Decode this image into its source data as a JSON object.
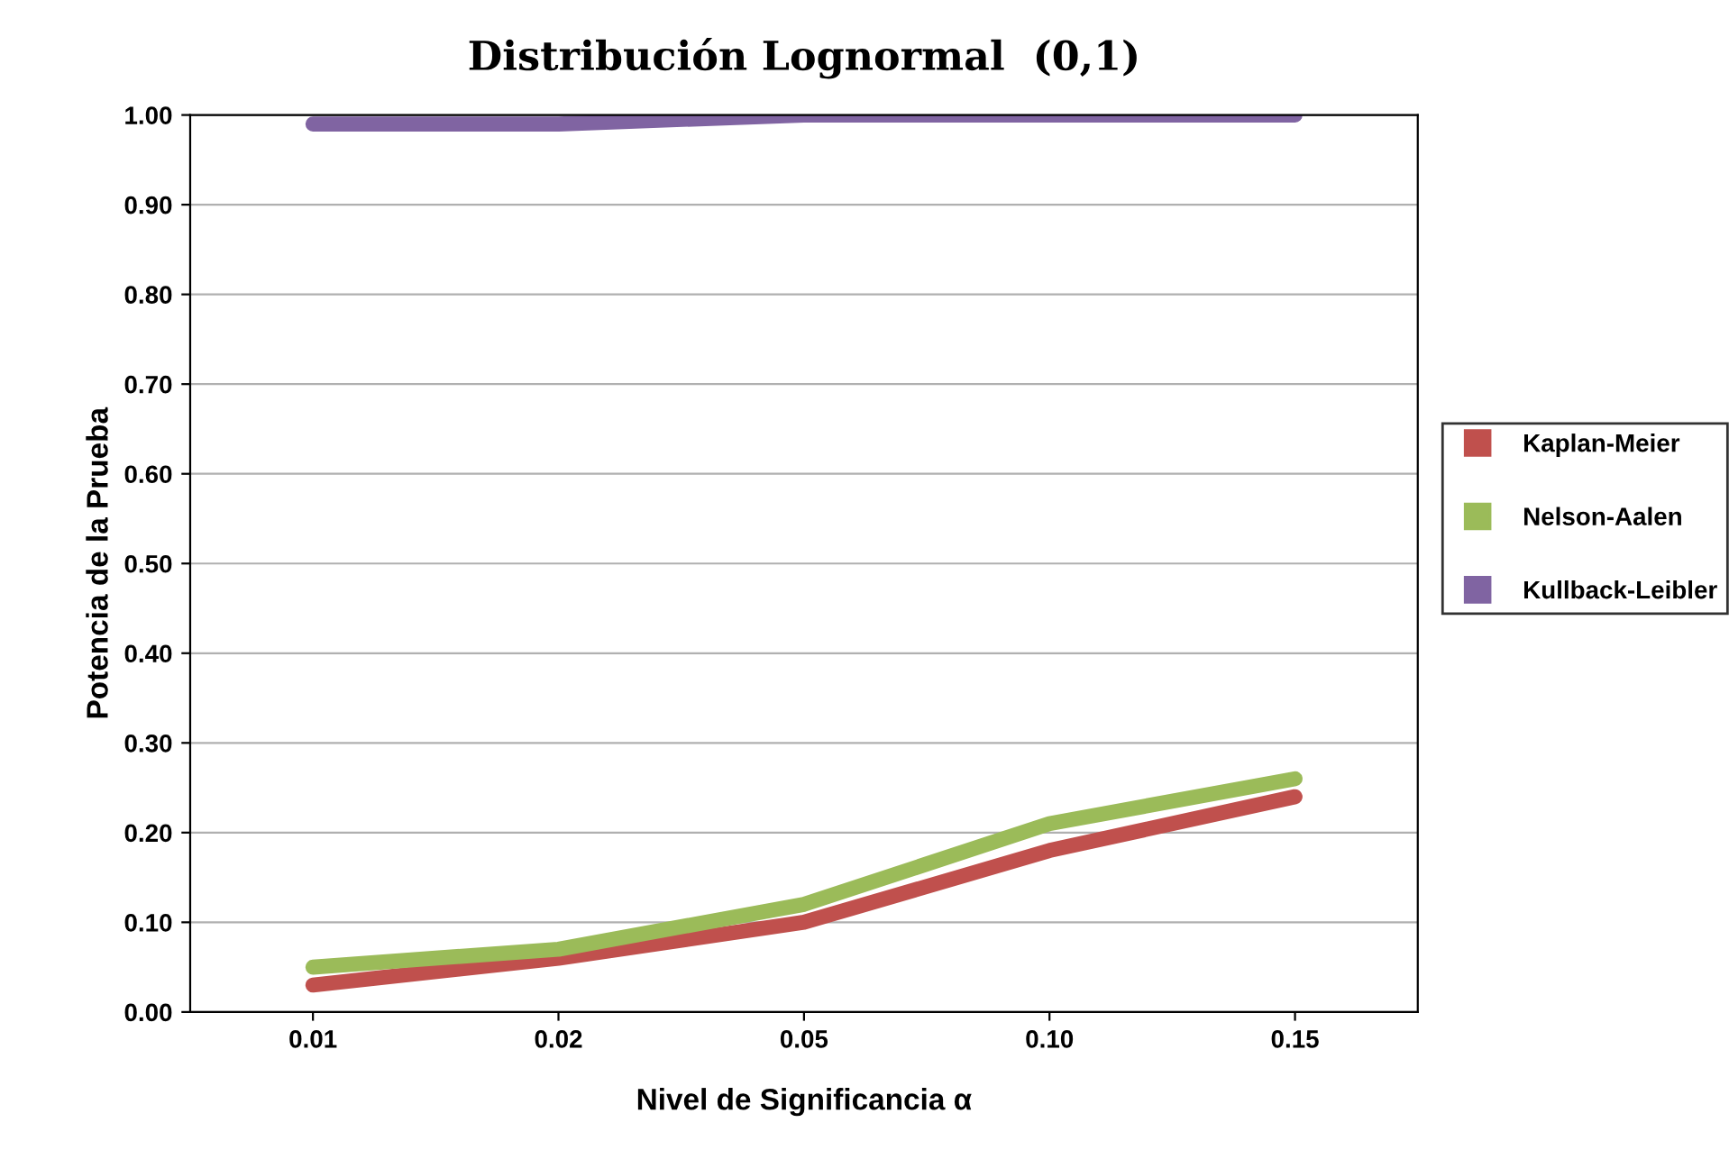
{
  "chart_data": {
    "type": "line",
    "title": "Distribución Lognormal  (0,1)",
    "xlabel": "Nivel de Significancia α",
    "ylabel": "Potencia de la Prueba",
    "categories": [
      "0.01",
      "0.02",
      "0.05",
      "0.10",
      "0.15"
    ],
    "series": [
      {
        "name": "Kaplan-Meier",
        "color": "#c0504d",
        "values": [
          0.03,
          0.06,
          0.1,
          0.18,
          0.24
        ]
      },
      {
        "name": "Nelson-Aalen",
        "color": "#9bbb59",
        "values": [
          0.05,
          0.07,
          0.12,
          0.21,
          0.26
        ]
      },
      {
        "name": "Kullback-Leibler",
        "color": "#8064a2",
        "values": [
          0.99,
          0.99,
          1.0,
          1.0,
          1.0
        ]
      }
    ],
    "ylim": [
      0,
      1
    ],
    "yticks": [
      {
        "value": 0,
        "label": "0.00"
      },
      {
        "value": 0.1,
        "label": "0.10"
      },
      {
        "value": 0.2,
        "label": "0.20"
      },
      {
        "value": 0.3,
        "label": "0.30"
      },
      {
        "value": 0.4,
        "label": "0.40"
      },
      {
        "value": 0.5,
        "label": "0.50"
      },
      {
        "value": 0.6,
        "label": "0.60"
      },
      {
        "value": 0.7,
        "label": "0.70"
      },
      {
        "value": 0.8,
        "label": "0.80"
      },
      {
        "value": 0.9,
        "label": "0.90"
      },
      {
        "value": 1,
        "label": "1.00"
      }
    ],
    "grid": "y",
    "legend": "right",
    "marker": "none",
    "line_style": "solid"
  }
}
